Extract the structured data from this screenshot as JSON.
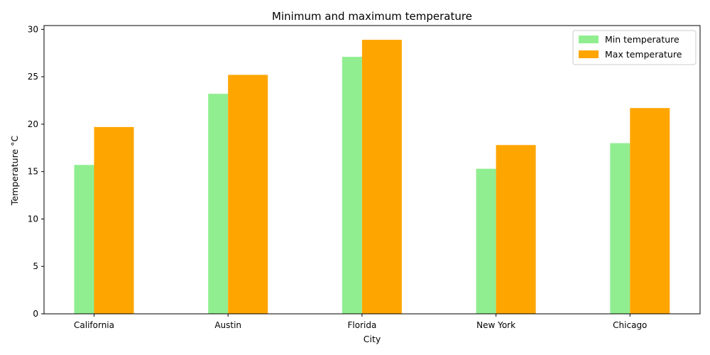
{
  "chart_data": {
    "type": "bar",
    "title": "Minimum and maximum temperature",
    "xlabel": "City",
    "ylabel": "Temperature °C",
    "categories": [
      "California",
      "Austin",
      "Florida",
      "New York",
      "Chicago"
    ],
    "series": [
      {
        "name": "Min temperature",
        "color": "#90ee90",
        "values": [
          15.7,
          23.2,
          27.1,
          15.3,
          18.0
        ]
      },
      {
        "name": "Max temperature",
        "color": "#ffa500",
        "values": [
          19.7,
          25.2,
          28.9,
          17.8,
          21.7
        ]
      }
    ],
    "ylim": [
      0,
      30.4
    ],
    "yticks": [
      0,
      5,
      10,
      15,
      20,
      25,
      30
    ],
    "grid": false,
    "legend": "top-right"
  }
}
